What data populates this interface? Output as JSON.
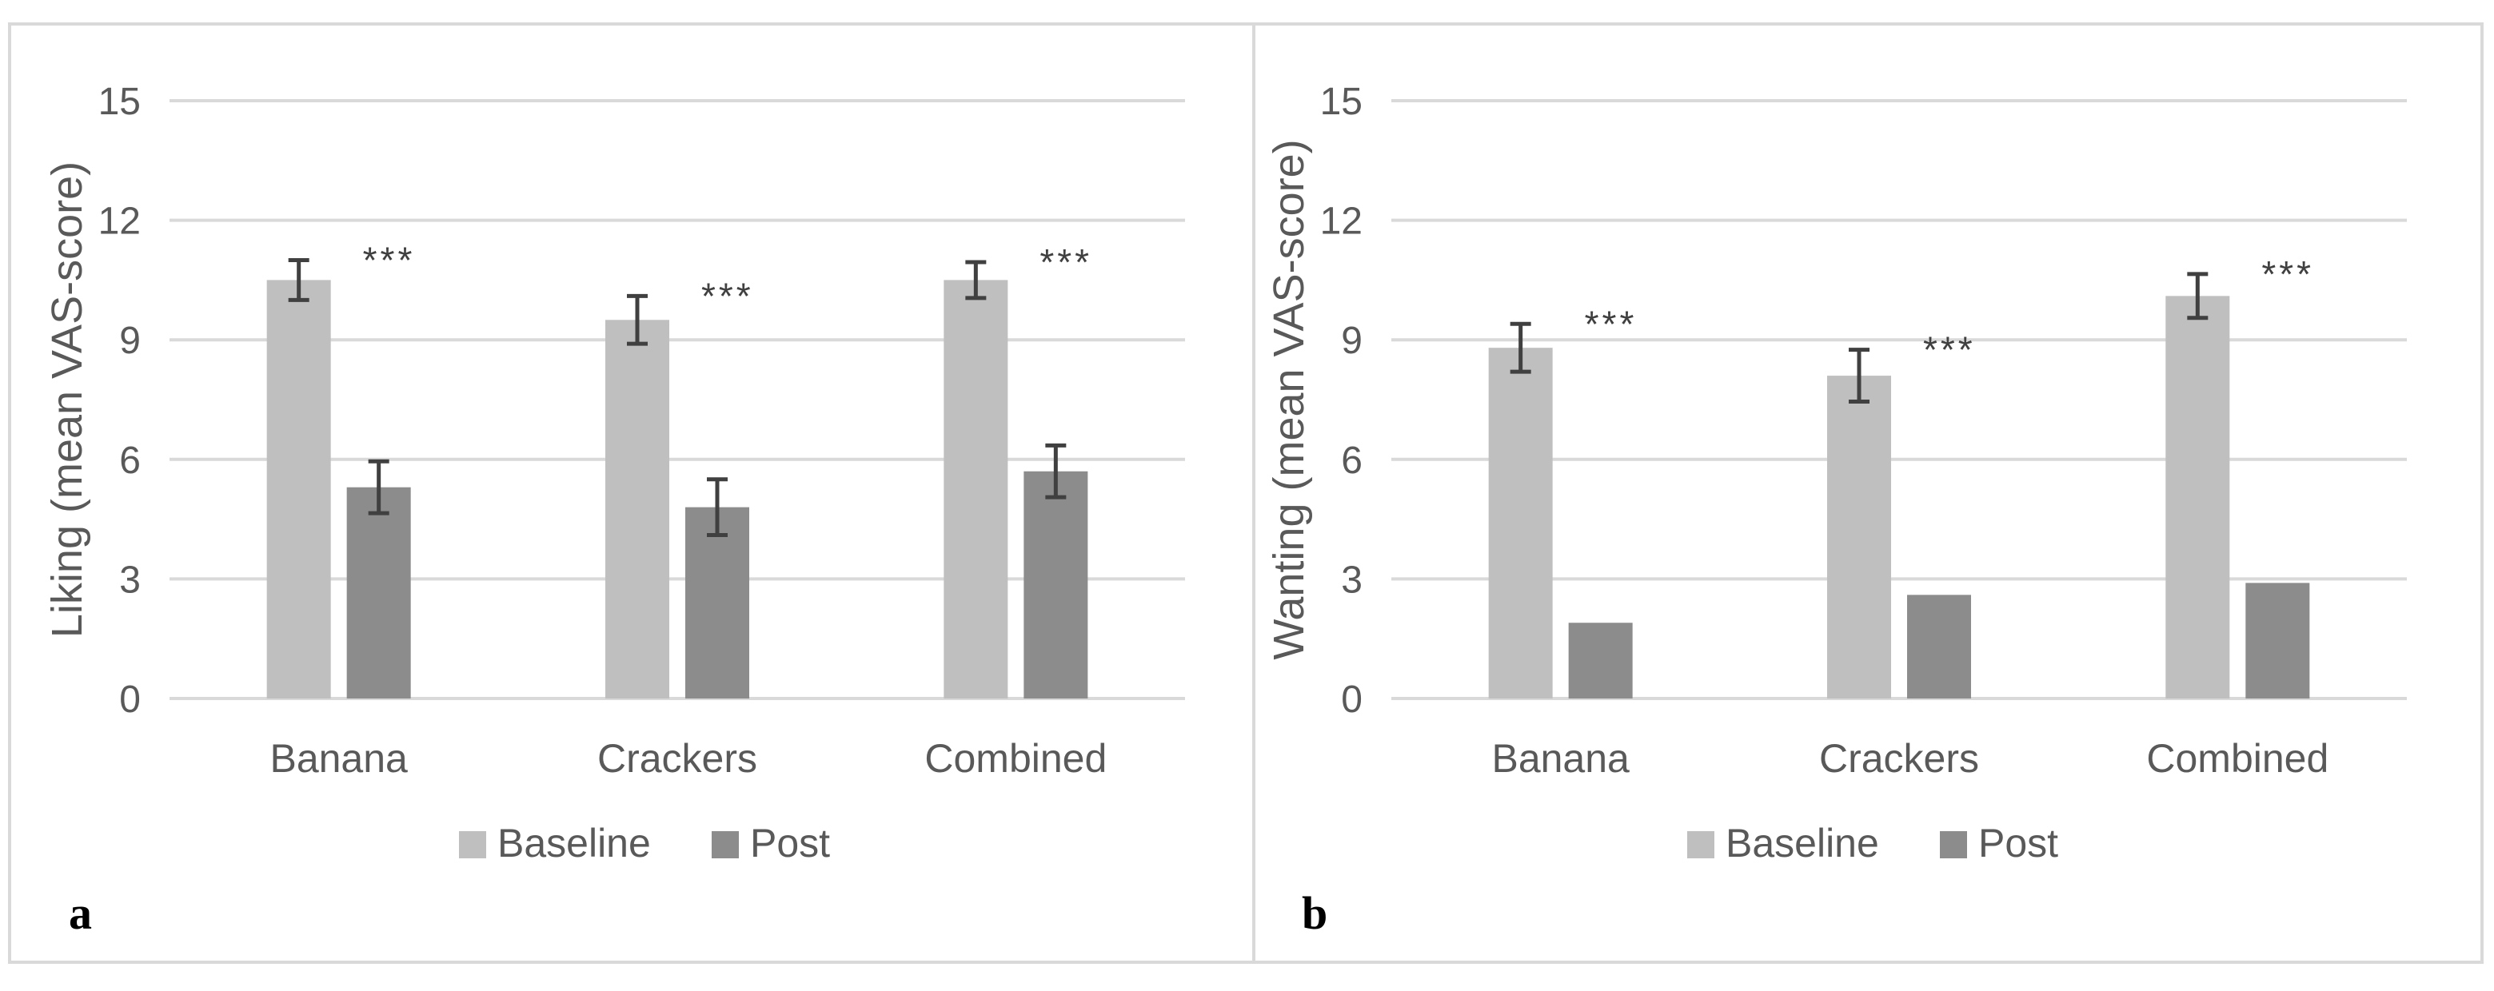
{
  "colors": {
    "baseline": "#bfbfbf",
    "post": "#8c8c8c",
    "grid": "#d9d9d9",
    "error": "#404040"
  },
  "chart_data": [
    {
      "panel_label": "a",
      "type": "bar",
      "title": "",
      "xlabel": "",
      "ylabel": "Liking (mean VAS-score)",
      "ylim": [
        0,
        15
      ],
      "yticks": [
        "0",
        "3",
        "6",
        "9",
        "12",
        "15"
      ],
      "grid": true,
      "legend_position": "bottom",
      "categories": [
        "Banana",
        "Crackers",
        "Combined"
      ],
      "series": [
        {
          "name": "Baseline",
          "values": [
            10.5,
            9.5,
            10.5
          ],
          "errors": [
            0.5,
            0.6,
            0.45
          ],
          "color": "#bfbfbf"
        },
        {
          "name": "Post",
          "values": [
            5.3,
            4.8,
            5.7
          ],
          "errors": [
            0.65,
            0.7,
            0.65
          ],
          "color": "#8c8c8c"
        }
      ],
      "annotations": [
        "***",
        "***",
        "***"
      ]
    },
    {
      "panel_label": "b",
      "type": "bar",
      "title": "",
      "xlabel": "",
      "ylabel": "Wanting (mean VAS-score)",
      "ylim": [
        0,
        15
      ],
      "yticks": [
        "0",
        "3",
        "6",
        "9",
        "12",
        "15"
      ],
      "grid": true,
      "legend_position": "bottom",
      "categories": [
        "Banana",
        "Crackers",
        "Combined"
      ],
      "series": [
        {
          "name": "Baseline",
          "values": [
            8.8,
            8.1,
            10.1
          ],
          "errors": [
            0.6,
            0.65,
            0.55
          ],
          "color": "#bfbfbf"
        },
        {
          "name": "Post",
          "values": [
            1.9,
            2.6,
            2.9
          ],
          "errors": [
            0,
            0,
            0
          ],
          "color": "#8c8c8c"
        }
      ],
      "annotations": [
        "***",
        "***",
        "***"
      ]
    }
  ]
}
